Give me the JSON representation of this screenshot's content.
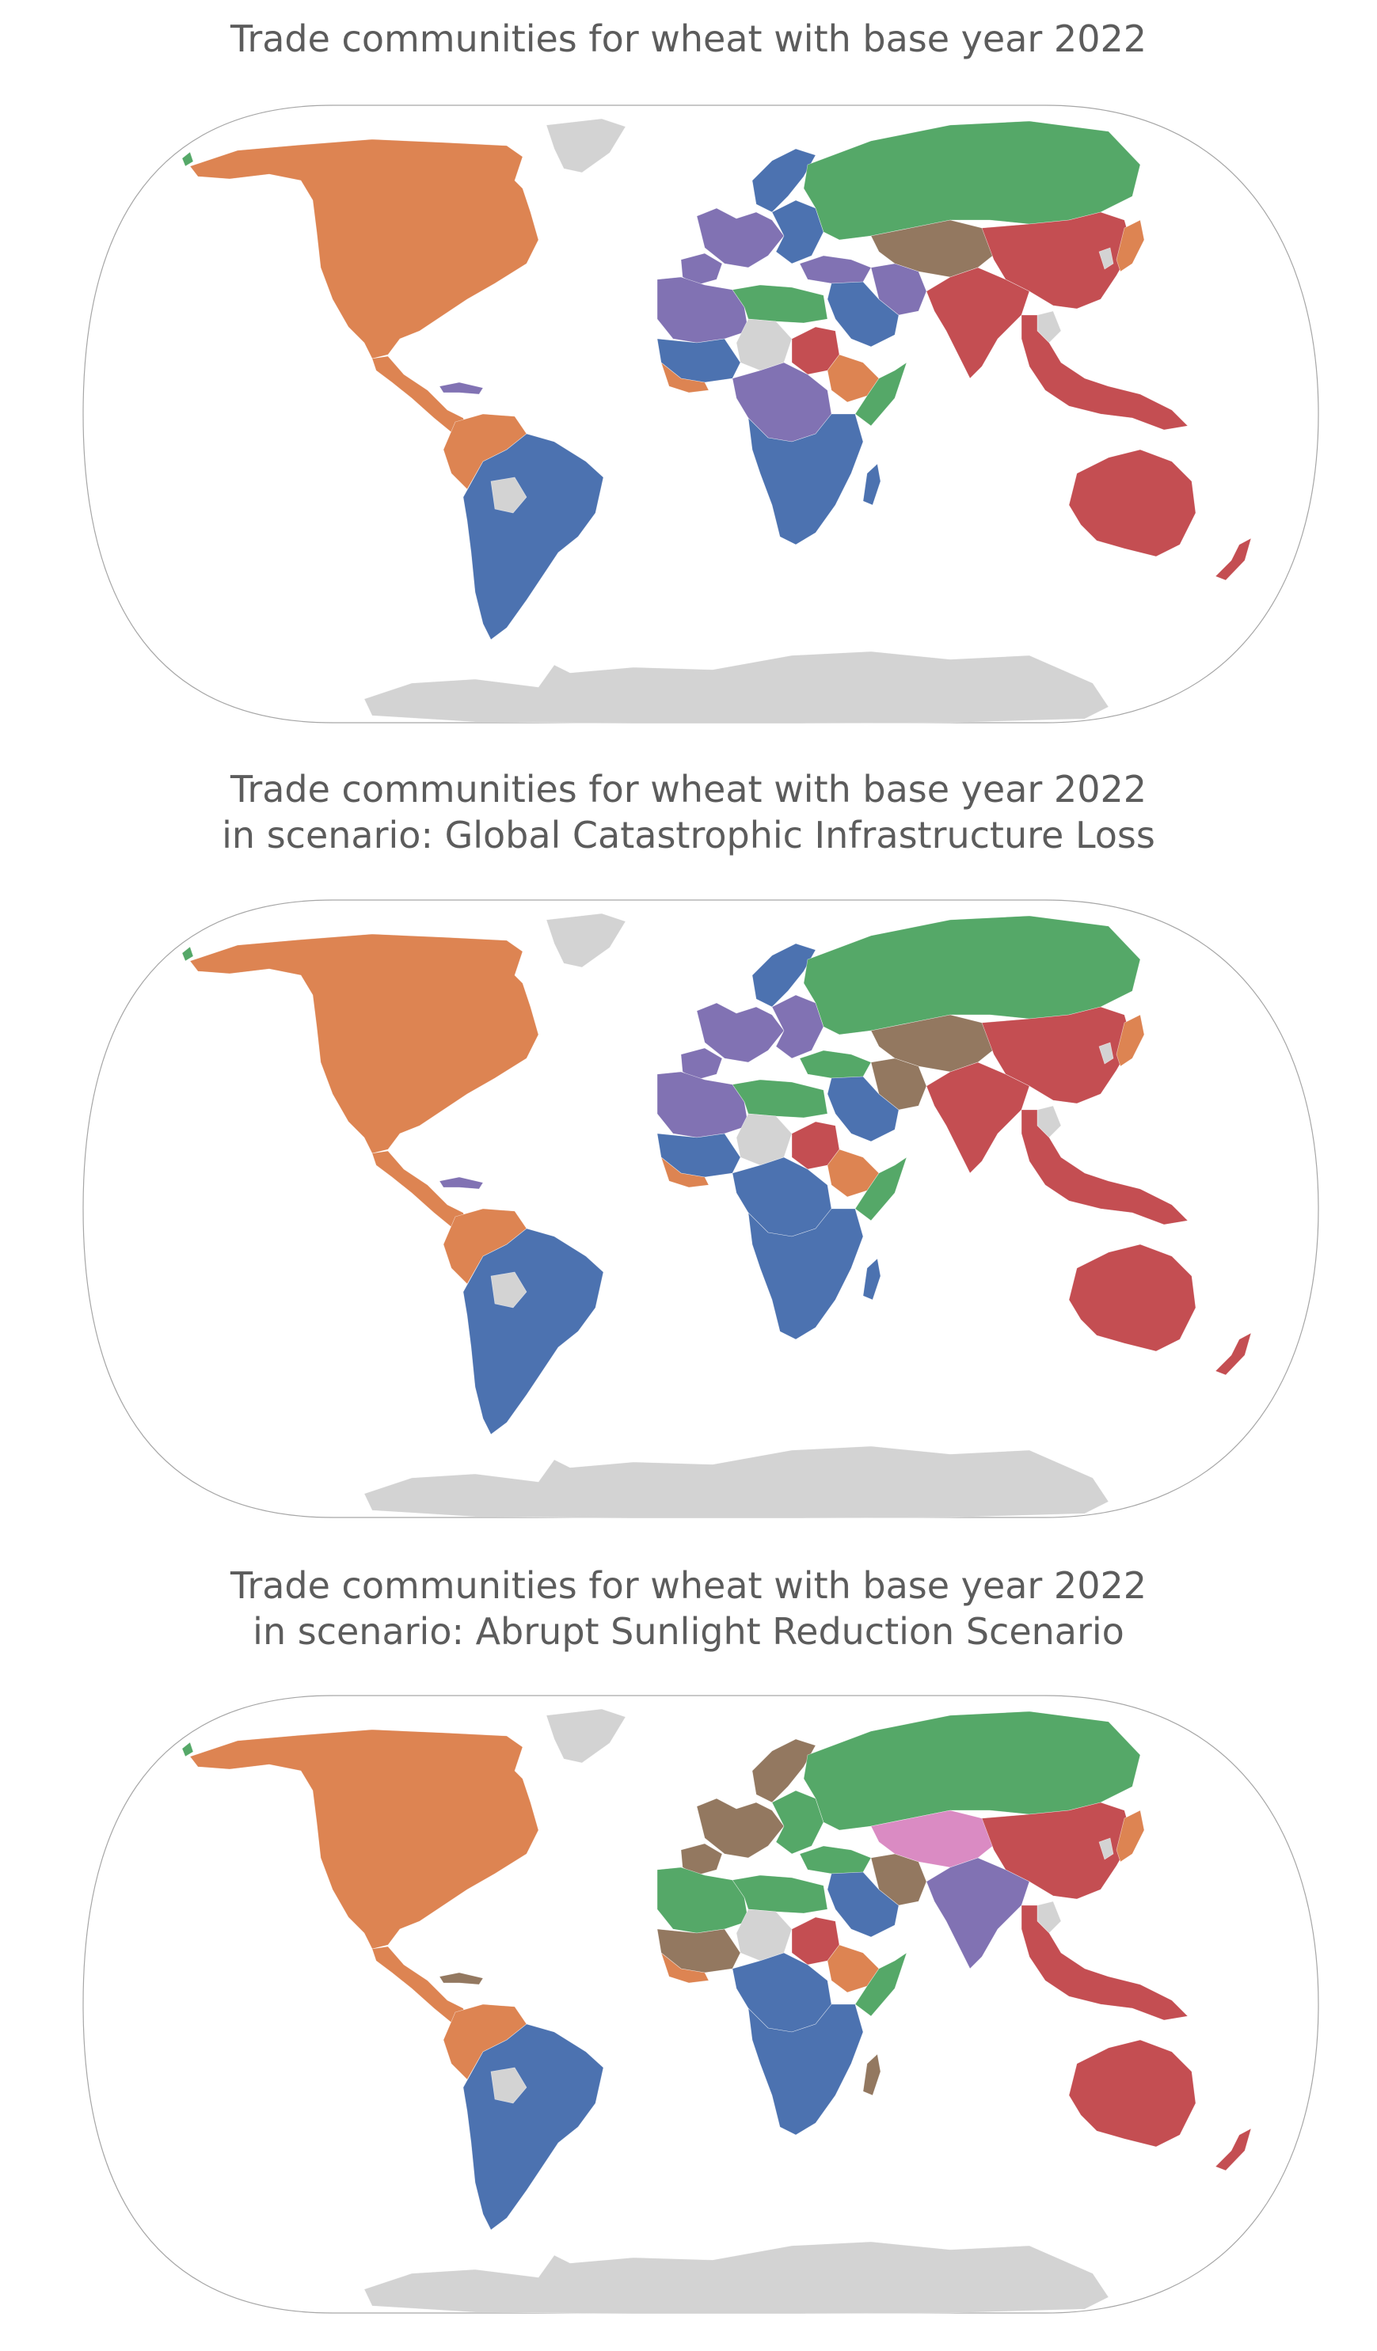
{
  "colors": {
    "community_blue": "#4c72b0",
    "community_orange": "#dd8452",
    "community_green": "#55a868",
    "community_red": "#c44e52",
    "community_purple": "#8172b3",
    "community_brown": "#937860",
    "community_pink": "#da8bc3",
    "no_data_gray": "#d3d3d3",
    "outline": "#a6a6a6",
    "title_text": "#5c5c5c"
  },
  "panels": [
    {
      "title_line1": "Trade communities for wheat with base year 2022",
      "title_line2": "",
      "projection": "Winkel tripel",
      "regions": {
        "north_america": "community_orange",
        "central_america": "community_orange",
        "caribbean": "community_purple",
        "greenland": "no_data_gray",
        "alaska_tip": "community_green",
        "andes_north": "community_orange",
        "south_america": "community_blue",
        "bolivia": "no_data_gray",
        "scandinavia": "community_blue",
        "western_europe": "community_purple",
        "iberia": "community_purple",
        "eastern_europe": "community_blue",
        "russia": "community_green",
        "central_asia": "community_brown",
        "caucasus_turkey": "community_purple",
        "middle_east": "community_blue",
        "iran": "community_purple",
        "north_africa_west": "community_purple",
        "libya_egypt": "community_green",
        "sahel_gray": "no_data_gray",
        "sudan": "community_red",
        "ethiopia": "community_orange",
        "somalia": "community_green",
        "west_africa": "community_blue",
        "west_africa_coast": "community_orange",
        "central_africa": "community_purple",
        "southern_africa": "community_blue",
        "madagascar": "community_blue",
        "east_asia": "community_red",
        "south_asia": "community_red",
        "southeast_asia": "community_red",
        "indochina_gray": "no_data_gray",
        "japan": "community_orange",
        "korea": "no_data_gray",
        "australia": "community_red",
        "new_zealand": "community_red",
        "antarctica": "no_data_gray"
      }
    },
    {
      "title_line1": "Trade communities for wheat with base year 2022",
      "title_line2": "in scenario: Global Catastrophic Infrastructure Loss",
      "projection": "Winkel tripel",
      "regions": {
        "north_america": "community_orange",
        "central_america": "community_orange",
        "caribbean": "community_purple",
        "greenland": "no_data_gray",
        "alaska_tip": "community_green",
        "andes_north": "community_orange",
        "south_america": "community_blue",
        "bolivia": "no_data_gray",
        "scandinavia": "community_blue",
        "western_europe": "community_purple",
        "iberia": "community_purple",
        "eastern_europe": "community_purple",
        "russia": "community_green",
        "central_asia": "community_brown",
        "caucasus_turkey": "community_green",
        "middle_east": "community_blue",
        "iran": "community_brown",
        "north_africa_west": "community_purple",
        "libya_egypt": "community_green",
        "sahel_gray": "no_data_gray",
        "sudan": "community_red",
        "ethiopia": "community_orange",
        "somalia": "community_green",
        "west_africa": "community_blue",
        "west_africa_coast": "community_orange",
        "central_africa": "community_blue",
        "southern_africa": "community_blue",
        "madagascar": "community_blue",
        "east_asia": "community_red",
        "south_asia": "community_red",
        "southeast_asia": "community_red",
        "indochina_gray": "no_data_gray",
        "japan": "community_orange",
        "korea": "no_data_gray",
        "australia": "community_red",
        "new_zealand": "community_red",
        "antarctica": "no_data_gray"
      }
    },
    {
      "title_line1": "Trade communities for wheat with base year 2022",
      "title_line2": "in scenario: Abrupt Sunlight Reduction Scenario",
      "projection": "Winkel tripel",
      "regions": {
        "north_america": "community_orange",
        "central_america": "community_orange",
        "caribbean": "community_brown",
        "greenland": "no_data_gray",
        "alaska_tip": "community_green",
        "andes_north": "community_orange",
        "south_america": "community_blue",
        "bolivia": "no_data_gray",
        "scandinavia": "community_brown",
        "western_europe": "community_brown",
        "iberia": "community_brown",
        "eastern_europe": "community_green",
        "russia": "community_green",
        "central_asia": "community_pink",
        "caucasus_turkey": "community_green",
        "middle_east": "community_blue",
        "iran": "community_brown",
        "north_africa_west": "community_green",
        "libya_egypt": "community_green",
        "sahel_gray": "no_data_gray",
        "sudan": "community_red",
        "ethiopia": "community_orange",
        "somalia": "community_green",
        "west_africa": "community_brown",
        "west_africa_coast": "community_orange",
        "central_africa": "community_blue",
        "southern_africa": "community_blue",
        "madagascar": "community_brown",
        "east_asia": "community_red",
        "south_asia": "community_purple",
        "southeast_asia": "community_red",
        "indochina_gray": "no_data_gray",
        "japan": "community_orange",
        "korea": "no_data_gray",
        "australia": "community_red",
        "new_zealand": "community_red",
        "antarctica": "no_data_gray"
      }
    }
  ]
}
